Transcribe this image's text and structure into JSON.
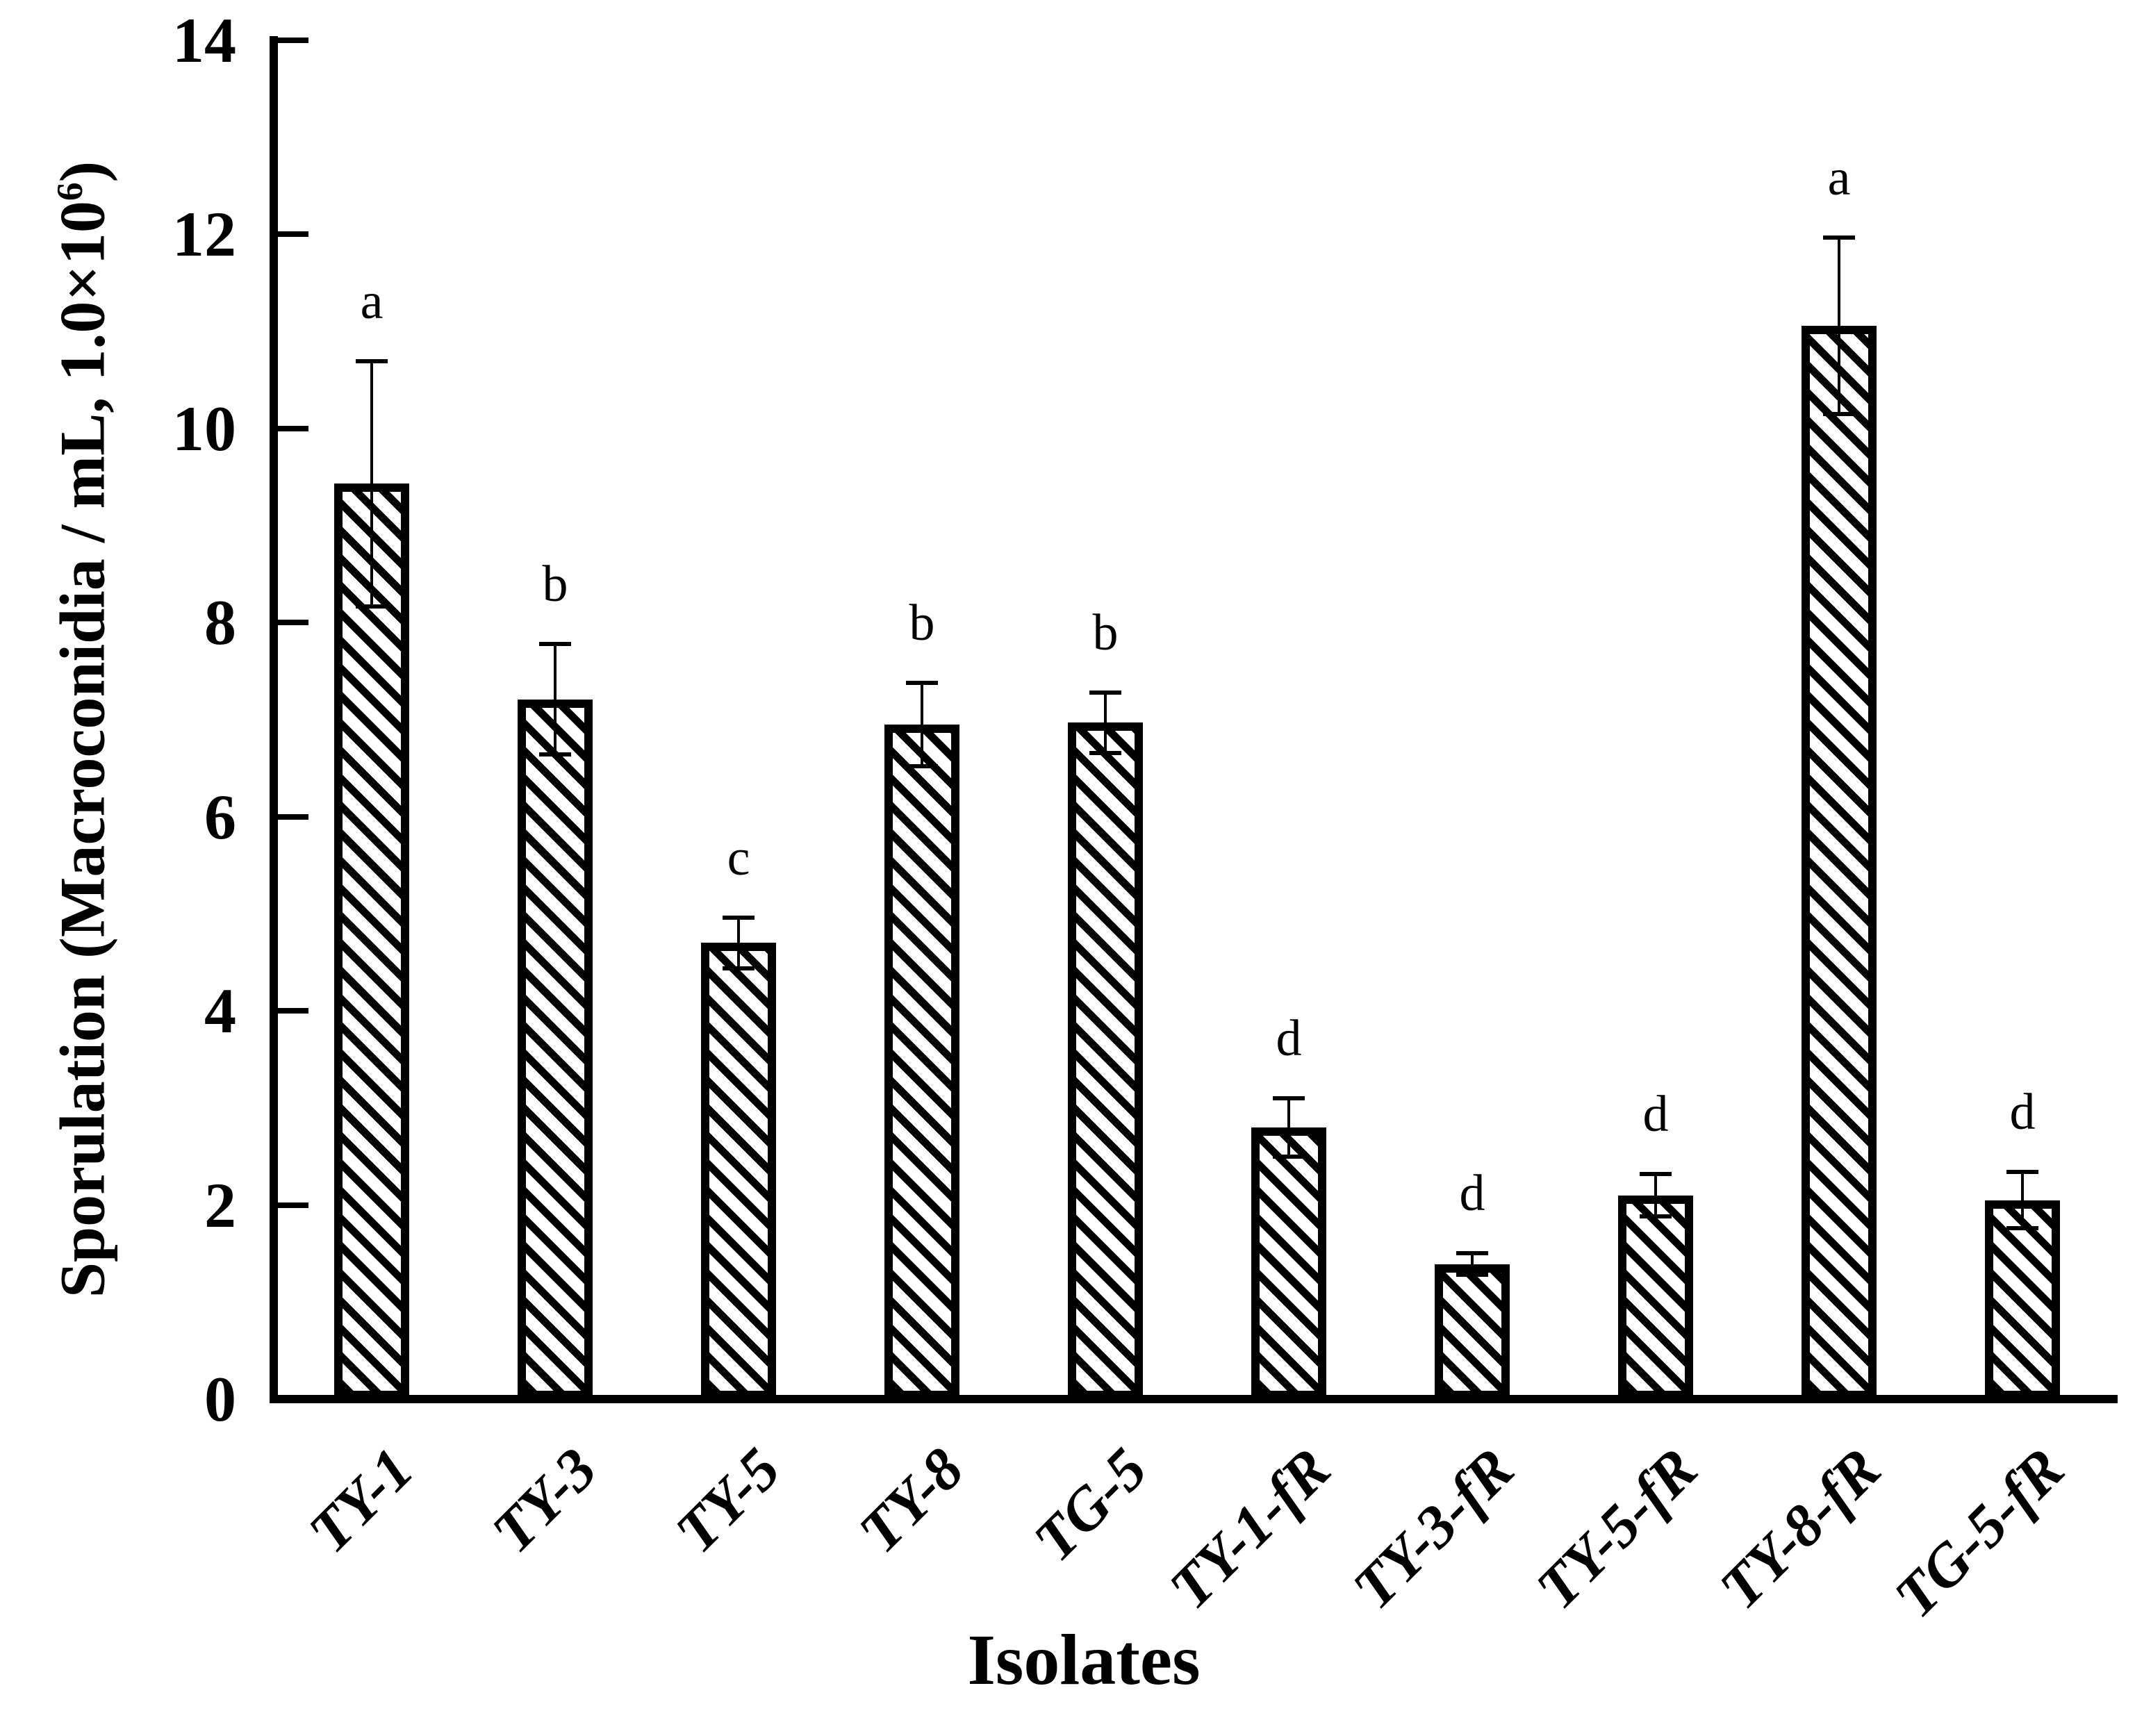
{
  "chart_data": {
    "type": "bar",
    "title": "",
    "xlabel": "Isolates",
    "ylabel": "Sporulation (Macroconidia / mL, 1.0×10⁶)",
    "ylabel_prefix": "Sporulation (Macroconidia / mL, 1.0×10",
    "ylabel_sup": "6",
    "ylabel_suffix": ")",
    "categories": [
      "TY-1",
      "TY-3",
      "TY-5",
      "TY-8",
      "TG-5",
      "TY-1-fR",
      "TY-3-fR",
      "TY-5-fR",
      "TY-8-fR",
      "TG-5-fR"
    ],
    "values": [
      9.43,
      7.21,
      4.7,
      6.95,
      6.97,
      2.8,
      1.39,
      2.1,
      11.06,
      2.05
    ],
    "errors": [
      1.26,
      0.57,
      0.26,
      0.43,
      0.31,
      0.3,
      0.11,
      0.22,
      0.91,
      0.29
    ],
    "sig_letters": [
      "a",
      "b",
      "c",
      "b",
      "b",
      "d",
      "d",
      "d",
      "a",
      "d"
    ],
    "yticks": [
      0,
      2,
      4,
      6,
      8,
      10,
      12,
      14
    ],
    "ytick_labels": [
      "0",
      "2",
      "4",
      "6",
      "8",
      "10",
      "12",
      "14"
    ],
    "ylim": [
      0,
      14
    ],
    "grid": false,
    "legend_position": "none",
    "bar_style": {
      "fill": "diagonal-hatch",
      "hatch_color": "#000000",
      "background": "#ffffff",
      "border_color": "#000000"
    },
    "error_bars": "symmetric, capped, black"
  },
  "colors": {
    "foreground": "#000000",
    "background": "#ffffff"
  }
}
